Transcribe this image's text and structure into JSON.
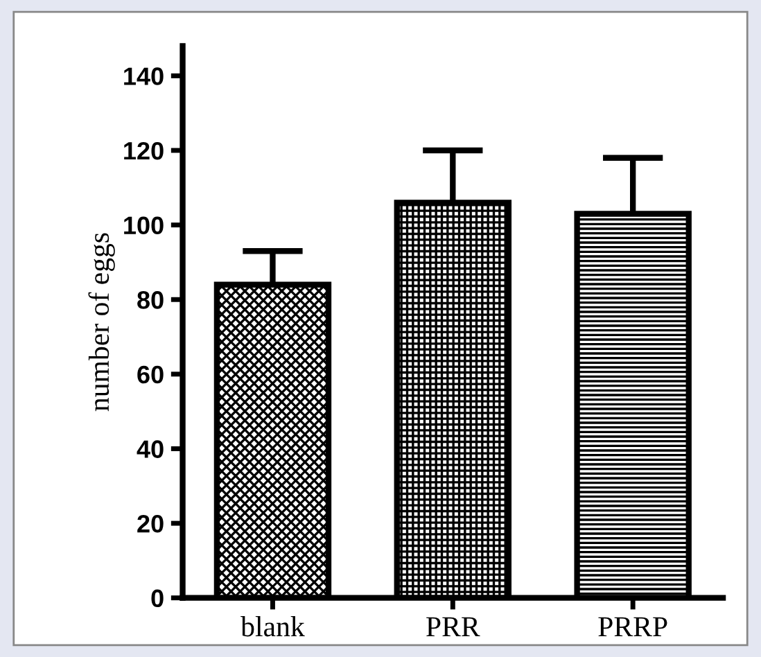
{
  "chart_data": {
    "type": "bar",
    "ylabel": "number of eggs",
    "categories": [
      "blank",
      "PRR",
      "PRRP"
    ],
    "values": [
      84,
      106,
      103
    ],
    "errors": [
      [
        84,
        93
      ],
      [
        106,
        120
      ],
      [
        103,
        118
      ]
    ],
    "ylim": [
      0,
      148
    ],
    "yticks": [
      0,
      20,
      40,
      60,
      80,
      100,
      120,
      140
    ],
    "grid": false,
    "legend": false
  }
}
